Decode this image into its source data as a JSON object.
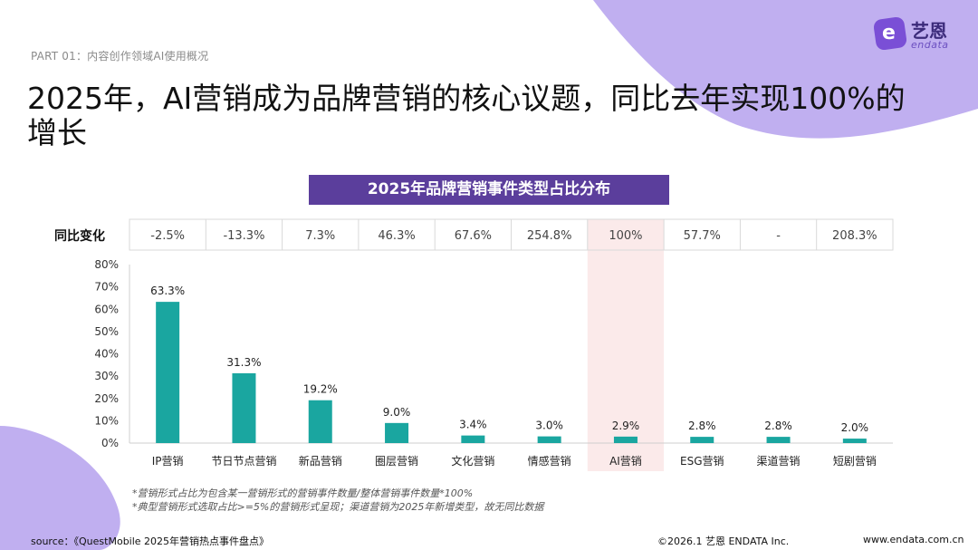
{
  "header": {
    "part_label": "PART 01：内容创作领域AI使用概况",
    "headline": "2025年，AI营销成为品牌营销的核心议题，同比去年实现100%的增长"
  },
  "logo": {
    "cn": "艺恩",
    "en": "endata",
    "mark_letter": "e"
  },
  "yoy": {
    "label": "同比变化",
    "values": [
      "-2.5%",
      "-13.3%",
      "7.3%",
      "46.3%",
      "67.6%",
      "254.8%",
      "100%",
      "57.7%",
      "-",
      "208.3%"
    ]
  },
  "chart_data": {
    "type": "bar",
    "title": "2025年品牌营销事件类型占比分布",
    "categories": [
      "IP营销",
      "节日节点营销",
      "新品营销",
      "圈层营销",
      "文化营销",
      "情感营销",
      "AI营销",
      "ESG营销",
      "渠道营销",
      "短剧营销"
    ],
    "values": [
      63.3,
      31.3,
      19.2,
      9.0,
      3.4,
      3.0,
      2.9,
      2.8,
      2.8,
      2.0
    ],
    "value_labels": [
      "63.3%",
      "31.3%",
      "19.2%",
      "9.0%",
      "3.4%",
      "3.0%",
      "2.9%",
      "2.8%",
      "2.8%",
      "2.0%"
    ],
    "y_ticks": [
      "0%",
      "10%",
      "20%",
      "30%",
      "40%",
      "50%",
      "60%",
      "70%",
      "80%"
    ],
    "ylim": [
      0,
      80
    ],
    "grid": false,
    "highlight_category": "AI营销",
    "bar_color": "#1aa6a0",
    "highlight_color": "#fbeaea"
  },
  "notes": [
    "*营销形式占比为包含某一营销形式的营销事件数量/整体营销事件数量*100%",
    "*典型营销形式选取占比>=5%的营销形式呈现；渠道营销为2025年新增类型，故无同比数据"
  ],
  "footer": {
    "source": "source：《QuestMobile 2025年营销热点事件盘点》",
    "copyright": "©2026.1  艺恩 ENDATA Inc.",
    "website": "www.endata.com.cn"
  }
}
